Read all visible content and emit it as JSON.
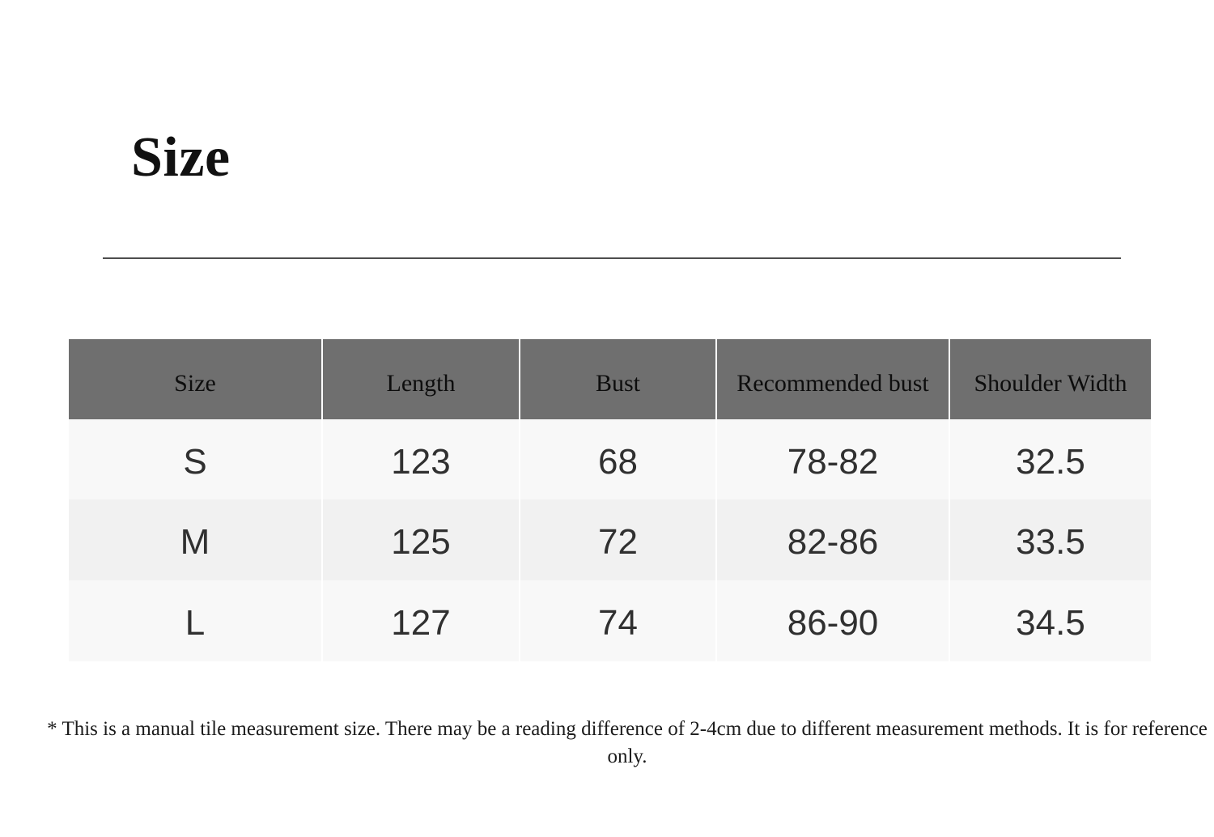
{
  "page": {
    "title": "Size",
    "note": "* This is a manual tile measurement size. There may be a reading difference of 2-4cm due to different measurement methods. It is for reference only."
  },
  "size_table": {
    "columns": [
      "Size",
      "Length",
      "Bust",
      "Recommended bust",
      "Shoulder Width"
    ],
    "rows": [
      {
        "cells": [
          "S",
          "123",
          "68",
          "78-82",
          "32.5"
        ]
      },
      {
        "cells": [
          "M",
          "125",
          "72",
          "82-86",
          "33.5"
        ]
      },
      {
        "cells": [
          "L",
          "127",
          "74",
          "86-90",
          "34.5"
        ]
      }
    ],
    "colors": {
      "header_bg": "#6f6f6f",
      "row_light": "#f8f8f8",
      "row_alt": "#f1f1f1",
      "header_text": "#0d0d0d",
      "body_text": "#303030",
      "divider": "#4d4d4d"
    }
  }
}
